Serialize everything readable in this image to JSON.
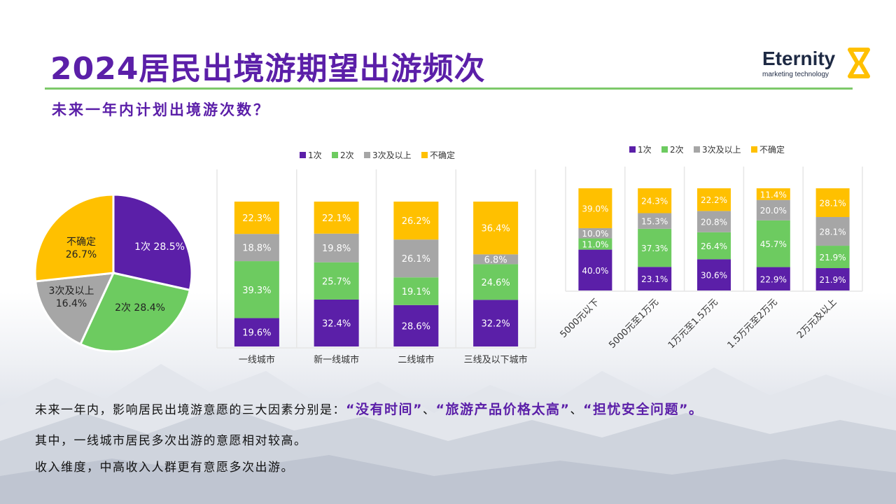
{
  "header": {
    "title": "2024居民出境游期望出游频次",
    "subtitle": "未来一年内计划出境游次数？",
    "logo_name": "Eternity",
    "logo_tagline": "marketing technology"
  },
  "colors": {
    "purple": "#5B1FA8",
    "green": "#6DCB60",
    "gray": "#A6A6A6",
    "yellow": "#FFC000",
    "title": "#5B1FA8",
    "rule": "#7DC96A"
  },
  "chart_data": [
    {
      "type": "pie",
      "labels": [
        "1次",
        "2次",
        "3次及以上",
        "不确定"
      ],
      "values": [
        28.5,
        28.4,
        16.4,
        26.7
      ],
      "value_labels": [
        "28.5%",
        "28.4%",
        "16.4%",
        "26.7%"
      ]
    },
    {
      "type": "bar",
      "stacked": true,
      "legend": "top",
      "categories": [
        "一线城市",
        "新一线城市",
        "二线城市",
        "三线及以下城市"
      ],
      "series": [
        {
          "name": "1次",
          "values": [
            19.6,
            32.4,
            28.6,
            32.2
          ],
          "labels": [
            "19.6%",
            "32.4%",
            "28.6%",
            "32.2%"
          ]
        },
        {
          "name": "2次",
          "values": [
            39.3,
            25.7,
            19.1,
            24.6
          ],
          "labels": [
            "39.3%",
            "25.7%",
            "19.1%",
            "24.6%"
          ]
        },
        {
          "name": "3次及以上",
          "values": [
            18.8,
            19.8,
            26.1,
            6.8
          ],
          "labels": [
            "18.8%",
            "19.8%",
            "26.1%",
            "6.8%"
          ]
        },
        {
          "name": "不确定",
          "values": [
            22.3,
            22.1,
            26.2,
            36.4
          ],
          "labels": [
            "22.3%",
            "22.1%",
            "26.2%",
            "36.4%"
          ]
        }
      ]
    },
    {
      "type": "bar",
      "stacked": true,
      "legend": "top",
      "categories": [
        "5000元以下",
        "5000元至1万元",
        "1万元至1.5万元",
        "1.5万元至2万元",
        "2万元及以上"
      ],
      "series": [
        {
          "name": "1次",
          "values": [
            40.0,
            23.1,
            30.6,
            22.9,
            21.9
          ],
          "labels": [
            "40.0%",
            "23.1%",
            "30.6%",
            "22.9%",
            "21.9%"
          ]
        },
        {
          "name": "2次",
          "values": [
            11.0,
            37.3,
            26.4,
            45.7,
            21.9
          ],
          "labels": [
            "11.0%",
            "37.3%",
            "26.4%",
            "45.7%",
            "21.9%"
          ]
        },
        {
          "name": "3次及以上",
          "values": [
            10.0,
            15.3,
            20.8,
            20.0,
            28.1
          ],
          "labels": [
            "10.0%",
            "15.3%",
            "20.8%",
            "20.0%",
            "28.1%"
          ]
        },
        {
          "name": "不确定",
          "values": [
            39.0,
            24.3,
            22.2,
            11.4,
            28.1
          ],
          "labels": [
            "39.0%",
            "24.3%",
            "22.2%",
            "11.4%",
            "28.1%"
          ]
        }
      ]
    }
  ],
  "summary": {
    "line1_prefix": "未来一年内，影响居民出境游意愿的三大因素分别是：",
    "factor1": "“没有时间”",
    "sep1": "、",
    "factor2": "“旅游产品价格太高”",
    "sep2": "、",
    "factor3": "“担忧安全问题”",
    "end": "。",
    "line2": "其中，一线城市居民多次出游的意愿相对较高。",
    "line3": "收入维度，中高收入人群更有意愿多次出游。"
  }
}
